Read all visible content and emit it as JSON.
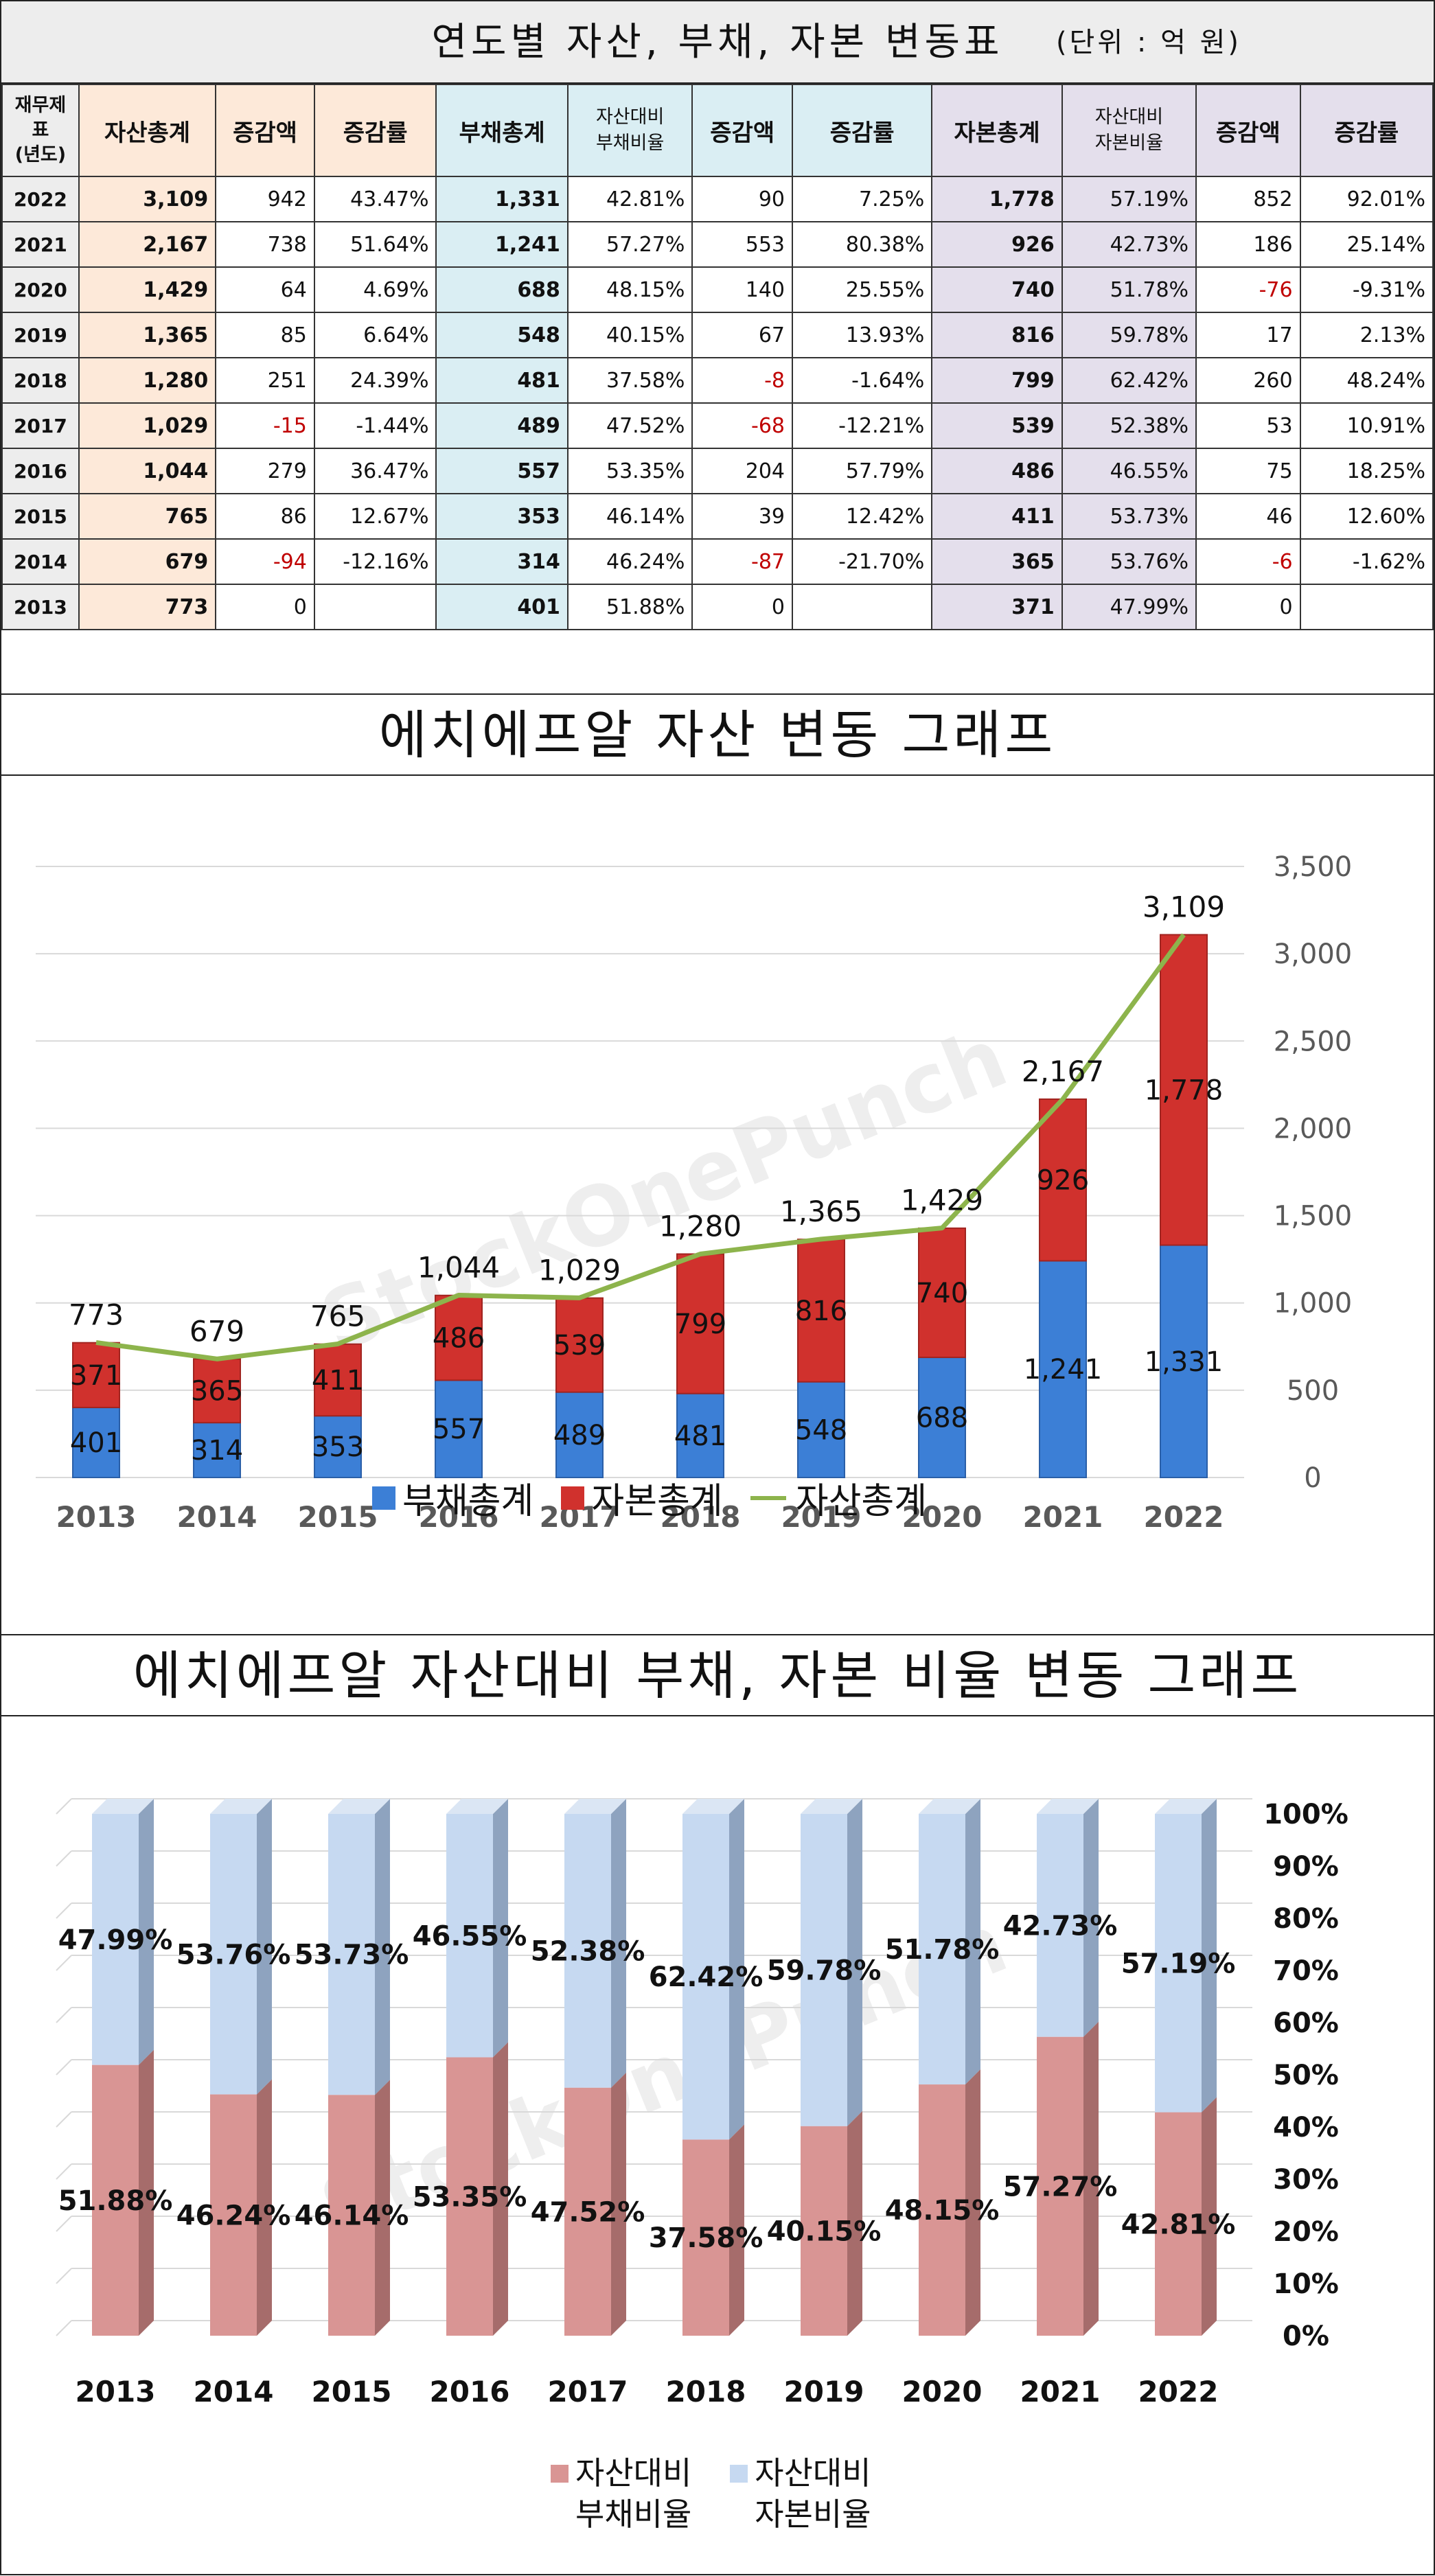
{
  "table": {
    "title": "연도별 자산, 부채, 자본 변동표",
    "unit": "(단위 : 억 원)",
    "headers": {
      "year_line1": "재무제",
      "year_line2": "표",
      "year_line3": "(년도)",
      "assets_total": "자산총계",
      "change_amount": "증감액",
      "change_rate": "증감률",
      "debt_total": "부채총계",
      "debt_ratio_line1": "자산대비",
      "debt_ratio_line2": "부채비율",
      "equity_total": "자본총계",
      "equity_ratio_line1": "자산대비",
      "equity_ratio_line2": "자본비율"
    },
    "rows": [
      {
        "year": "2022",
        "assets": "3,109",
        "assets_chg": "942",
        "assets_rate": "43.47%",
        "debt": "1,331",
        "debt_ratio": "42.81%",
        "debt_chg": "90",
        "debt_rate": "7.25%",
        "equity": "1,778",
        "equity_ratio": "57.19%",
        "equity_chg": "852",
        "equity_rate": "92.01%"
      },
      {
        "year": "2021",
        "assets": "2,167",
        "assets_chg": "738",
        "assets_rate": "51.64%",
        "debt": "1,241",
        "debt_ratio": "57.27%",
        "debt_chg": "553",
        "debt_rate": "80.38%",
        "equity": "926",
        "equity_ratio": "42.73%",
        "equity_chg": "186",
        "equity_rate": "25.14%"
      },
      {
        "year": "2020",
        "assets": "1,429",
        "assets_chg": "64",
        "assets_rate": "4.69%",
        "debt": "688",
        "debt_ratio": "48.15%",
        "debt_chg": "140",
        "debt_rate": "25.55%",
        "equity": "740",
        "equity_ratio": "51.78%",
        "equity_chg": "-76",
        "equity_rate": "-9.31%"
      },
      {
        "year": "2019",
        "assets": "1,365",
        "assets_chg": "85",
        "assets_rate": "6.64%",
        "debt": "548",
        "debt_ratio": "40.15%",
        "debt_chg": "67",
        "debt_rate": "13.93%",
        "equity": "816",
        "equity_ratio": "59.78%",
        "equity_chg": "17",
        "equity_rate": "2.13%"
      },
      {
        "year": "2018",
        "assets": "1,280",
        "assets_chg": "251",
        "assets_rate": "24.39%",
        "debt": "481",
        "debt_ratio": "37.58%",
        "debt_chg": "-8",
        "debt_rate": "-1.64%",
        "equity": "799",
        "equity_ratio": "62.42%",
        "equity_chg": "260",
        "equity_rate": "48.24%"
      },
      {
        "year": "2017",
        "assets": "1,029",
        "assets_chg": "-15",
        "assets_rate": "-1.44%",
        "debt": "489",
        "debt_ratio": "47.52%",
        "debt_chg": "-68",
        "debt_rate": "-12.21%",
        "equity": "539",
        "equity_ratio": "52.38%",
        "equity_chg": "53",
        "equity_rate": "10.91%"
      },
      {
        "year": "2016",
        "assets": "1,044",
        "assets_chg": "279",
        "assets_rate": "36.47%",
        "debt": "557",
        "debt_ratio": "53.35%",
        "debt_chg": "204",
        "debt_rate": "57.79%",
        "equity": "486",
        "equity_ratio": "46.55%",
        "equity_chg": "75",
        "equity_rate": "18.25%"
      },
      {
        "year": "2015",
        "assets": "765",
        "assets_chg": "86",
        "assets_rate": "12.67%",
        "debt": "353",
        "debt_ratio": "46.14%",
        "debt_chg": "39",
        "debt_rate": "12.42%",
        "equity": "411",
        "equity_ratio": "53.73%",
        "equity_chg": "46",
        "equity_rate": "12.60%"
      },
      {
        "year": "2014",
        "assets": "679",
        "assets_chg": "-94",
        "assets_rate": "-12.16%",
        "debt": "314",
        "debt_ratio": "46.24%",
        "debt_chg": "-87",
        "debt_rate": "-21.70%",
        "equity": "365",
        "equity_ratio": "53.76%",
        "equity_chg": "-6",
        "equity_rate": "-1.62%"
      },
      {
        "year": "2013",
        "assets": "773",
        "assets_chg": "0",
        "assets_rate": "",
        "debt": "401",
        "debt_ratio": "51.88%",
        "debt_chg": "0",
        "debt_rate": "",
        "equity": "371",
        "equity_ratio": "47.99%",
        "equity_chg": "0",
        "equity_rate": ""
      }
    ]
  },
  "watermark": "StockOnePunch",
  "colors": {
    "debt_bar": "#3c7fd6",
    "equity_bar": "#d0312d",
    "assets_line": "#8db44c",
    "ratio_debt": "#d99594",
    "ratio_equity": "#c6d9f1",
    "negative": "#c00000"
  },
  "chart_data": [
    {
      "type": "bar",
      "stacked": true,
      "title": "에치에프알 자산 변동 그래프",
      "categories": [
        "2013",
        "2014",
        "2015",
        "2016",
        "2017",
        "2018",
        "2019",
        "2020",
        "2021",
        "2022"
      ],
      "series": [
        {
          "name": "부채총계",
          "kind": "bar",
          "values": [
            401,
            314,
            353,
            557,
            489,
            481,
            548,
            688,
            1241,
            1331
          ],
          "labels": [
            "401",
            "314",
            "353",
            "557",
            "489",
            "481",
            "548",
            "688",
            "1,241",
            "1,331"
          ]
        },
        {
          "name": "자본총계",
          "kind": "bar",
          "values": [
            371,
            365,
            411,
            486,
            539,
            799,
            816,
            740,
            926,
            1778
          ],
          "labels": [
            "371",
            "365",
            "411",
            "486",
            "539",
            "799",
            "816",
            "740",
            "926",
            "1,778"
          ]
        },
        {
          "name": "자산총계",
          "kind": "line",
          "values": [
            773,
            679,
            765,
            1044,
            1029,
            1280,
            1365,
            1429,
            2167,
            3109
          ],
          "labels": [
            "773",
            "679",
            "765",
            "1,044",
            "1,029",
            "1,280",
            "1,365",
            "1,429",
            "2,167",
            "3,109"
          ]
        }
      ],
      "ylim": [
        0,
        3500
      ],
      "yticks": [
        "0",
        "500",
        "1,000",
        "1,500",
        "2,000",
        "2,500",
        "3,000",
        "3,500"
      ],
      "y_axis_side": "right",
      "grid": true,
      "legend": "bottom"
    },
    {
      "type": "bar",
      "stacked": true,
      "percent": true,
      "style": "3d",
      "title": "에치에프알 자산대비 부채, 자본 비율 변동 그래프",
      "categories": [
        "2013",
        "2014",
        "2015",
        "2016",
        "2017",
        "2018",
        "2019",
        "2020",
        "2021",
        "2022"
      ],
      "series": [
        {
          "name": "자산대비 부채비율",
          "legend_lines": [
            "자산대비",
            "부채비율"
          ],
          "values": [
            51.88,
            46.24,
            46.14,
            53.35,
            47.52,
            37.58,
            40.15,
            48.15,
            57.27,
            42.81
          ],
          "labels": [
            "51.88%",
            "46.24%",
            "46.14%",
            "53.35%",
            "47.52%",
            "37.58%",
            "40.15%",
            "48.15%",
            "57.27%",
            "42.81%"
          ]
        },
        {
          "name": "자산대비 자본비율",
          "legend_lines": [
            "자산대비",
            "자본비율"
          ],
          "values": [
            47.99,
            53.76,
            53.73,
            46.55,
            52.38,
            62.42,
            59.78,
            51.78,
            42.73,
            57.19
          ],
          "labels": [
            "47.99%",
            "53.76%",
            "53.73%",
            "46.55%",
            "52.38%",
            "62.42%",
            "59.78%",
            "51.78%",
            "42.73%",
            "57.19%"
          ]
        }
      ],
      "ylim": [
        0,
        100
      ],
      "yticks": [
        "0%",
        "10%",
        "20%",
        "30%",
        "40%",
        "50%",
        "60%",
        "70%",
        "80%",
        "90%",
        "100%"
      ],
      "y_axis_side": "right",
      "grid": true,
      "legend": "bottom"
    }
  ]
}
